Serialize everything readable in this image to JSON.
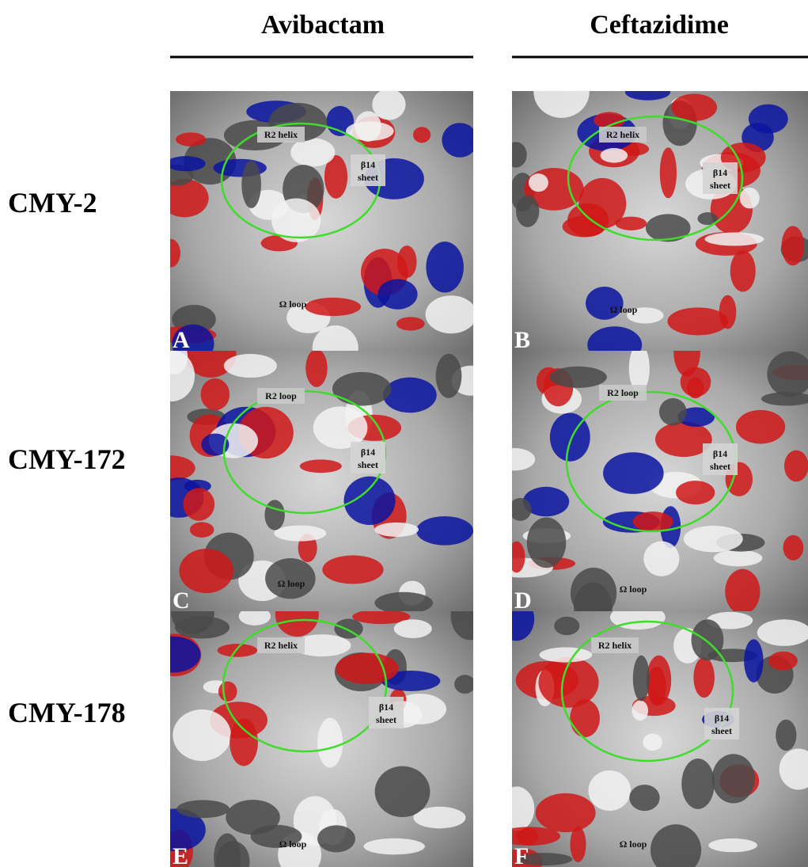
{
  "columns": [
    "Avibactam",
    "Ceftazidime"
  ],
  "rows": [
    "CMY-2",
    "CMY-172",
    "CMY-178"
  ],
  "panels": [
    {
      "letter": "A",
      "r2": "R2 helix",
      "beta": [
        "β14",
        "sheet"
      ],
      "omega": "Ω loop"
    },
    {
      "letter": "B",
      "r2": "R2 helix",
      "beta": [
        "β14",
        "sheet"
      ],
      "omega": "Ω loop"
    },
    {
      "letter": "C",
      "r2": "R2 loop",
      "beta": [
        "β14",
        "sheet"
      ],
      "omega": "Ω loop"
    },
    {
      "letter": "D",
      "r2": "R2 loop",
      "beta": [
        "β14",
        "sheet"
      ],
      "omega": "Ω loop"
    },
    {
      "letter": "E",
      "r2": "R2 helix",
      "beta": [
        "β14",
        "sheet"
      ],
      "omega": "Ω loop"
    },
    {
      "letter": "F",
      "r2": "R2 helix",
      "beta": [
        "β14",
        "sheet"
      ],
      "omega": "Ω loop"
    }
  ]
}
